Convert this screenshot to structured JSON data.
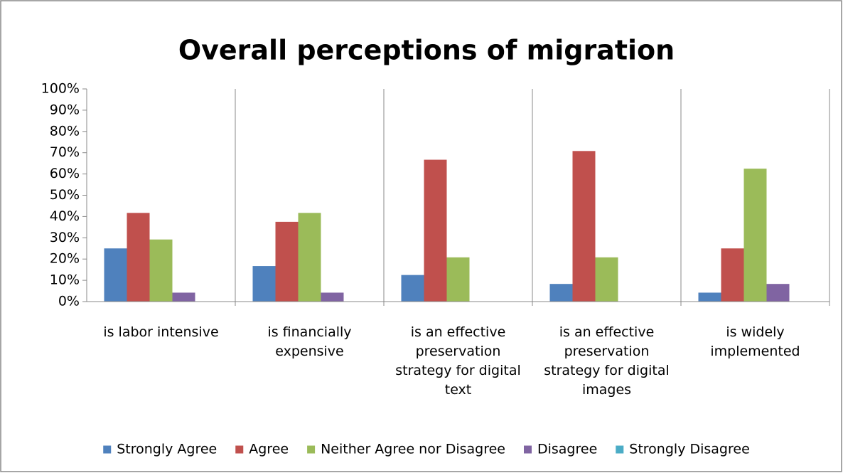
{
  "chart_data": {
    "type": "bar",
    "title": "Overall perceptions of migration",
    "categories": [
      "is labor intensive",
      "is financially expensive",
      "is an effective preservation strategy for digital text",
      "is an effective preservation strategy for digital images",
      "is widely implemented"
    ],
    "series": [
      {
        "name": "Strongly Agree",
        "color": "#4f81bd",
        "values": [
          25,
          16.7,
          12.5,
          8.3,
          4.2
        ]
      },
      {
        "name": "Agree",
        "color": "#c0504d",
        "values": [
          41.7,
          37.5,
          66.7,
          70.8,
          25
        ]
      },
      {
        "name": "Neither Agree nor Disagree",
        "color": "#9bbb59",
        "values": [
          29.2,
          41.7,
          20.8,
          20.8,
          62.5
        ]
      },
      {
        "name": "Disagree",
        "color": "#8064a2",
        "values": [
          4.2,
          4.2,
          0,
          0,
          8.3
        ]
      },
      {
        "name": "Strongly Disagree",
        "color": "#4bacc6",
        "values": [
          0,
          0,
          0,
          0,
          0
        ]
      }
    ],
    "ylim": [
      0,
      100
    ],
    "yticks": [
      {
        "value": 0,
        "label": "0%"
      },
      {
        "value": 10,
        "label": "10%"
      },
      {
        "value": 20,
        "label": "20%"
      },
      {
        "value": 30,
        "label": "30%"
      },
      {
        "value": 40,
        "label": "40%"
      },
      {
        "value": 50,
        "label": "50%"
      },
      {
        "value": 60,
        "label": "60%"
      },
      {
        "value": 70,
        "label": "70%"
      },
      {
        "value": 80,
        "label": "80%"
      },
      {
        "value": 90,
        "label": "90%"
      },
      {
        "value": 100,
        "label": "100%"
      }
    ],
    "legend": "bottom"
  }
}
